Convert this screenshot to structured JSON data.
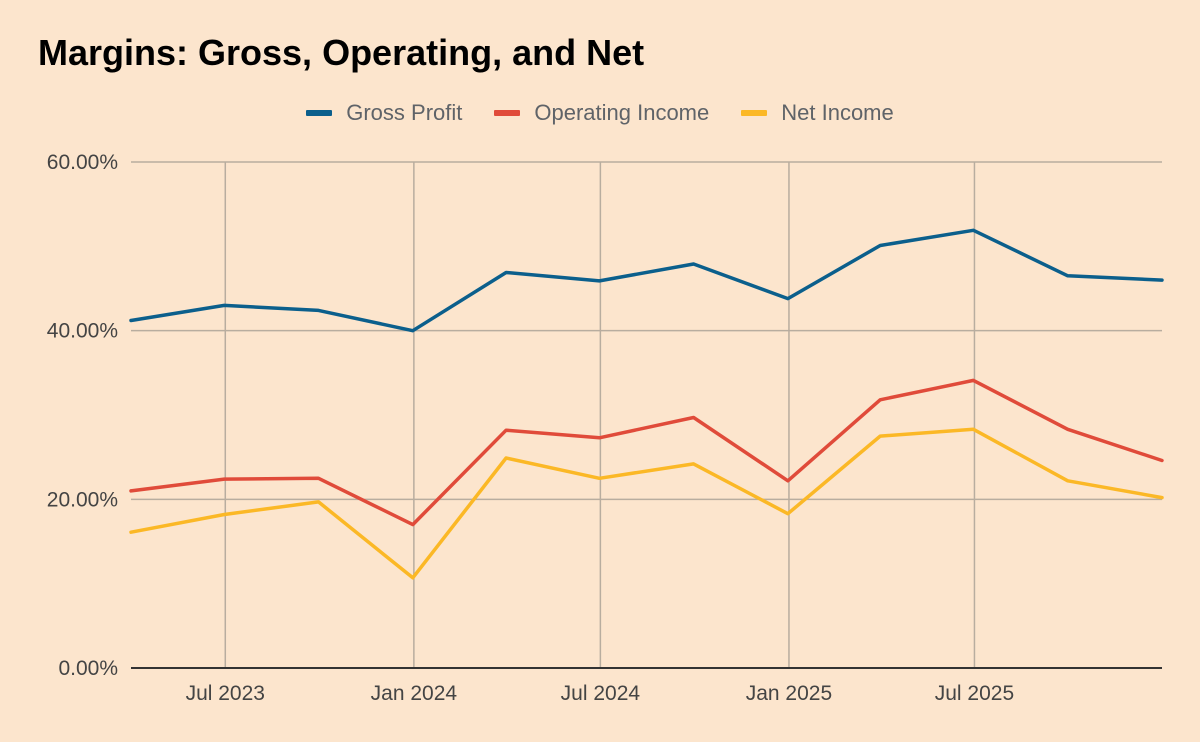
{
  "chart_data": {
    "type": "line",
    "title": "Margins: Gross, Operating, and Net",
    "xlabel": "",
    "ylabel": "",
    "legend_position": "top",
    "grid": true,
    "x": [
      "2023-03-31",
      "2023-06-30",
      "2023-09-30",
      "2023-12-31",
      "2024-03-31",
      "2024-06-30",
      "2024-09-30",
      "2024-12-31",
      "2025-03-31",
      "2025-06-30",
      "2025-09-30",
      "2025-12-31"
    ],
    "xlim": [
      "2023-03-31",
      "2025-12-31"
    ],
    "x_ticks": [
      {
        "date": "2023-07-01",
        "label": "Jul 2023"
      },
      {
        "date": "2024-01-01",
        "label": "Jan 2024"
      },
      {
        "date": "2024-07-01",
        "label": "Jul 2024"
      },
      {
        "date": "2025-01-01",
        "label": "Jan 2025"
      },
      {
        "date": "2025-07-01",
        "label": "Jul 2025"
      }
    ],
    "ylim": [
      0,
      60
    ],
    "y_ticks": [
      {
        "value": 0,
        "label": "0.00%"
      },
      {
        "value": 20,
        "label": "20.00%"
      },
      {
        "value": 40,
        "label": "40.00%"
      },
      {
        "value": 60,
        "label": "60.00%"
      }
    ],
    "series": [
      {
        "name": "Gross Profit",
        "color": "#0b5f8c",
        "values": [
          41.2,
          43.0,
          42.4,
          40.0,
          46.9,
          45.9,
          47.9,
          43.8,
          50.1,
          51.9,
          46.5,
          46.0
        ]
      },
      {
        "name": "Operating Income",
        "color": "#e04b3a",
        "values": [
          21.0,
          22.4,
          22.5,
          17.0,
          28.2,
          27.3,
          29.7,
          22.2,
          31.8,
          34.1,
          28.3,
          24.6
        ]
      },
      {
        "name": "Net Income",
        "color": "#fbb826",
        "values": [
          16.1,
          18.2,
          19.7,
          10.7,
          24.9,
          22.5,
          24.2,
          18.3,
          27.5,
          28.3,
          22.2,
          20.2
        ]
      }
    ]
  }
}
